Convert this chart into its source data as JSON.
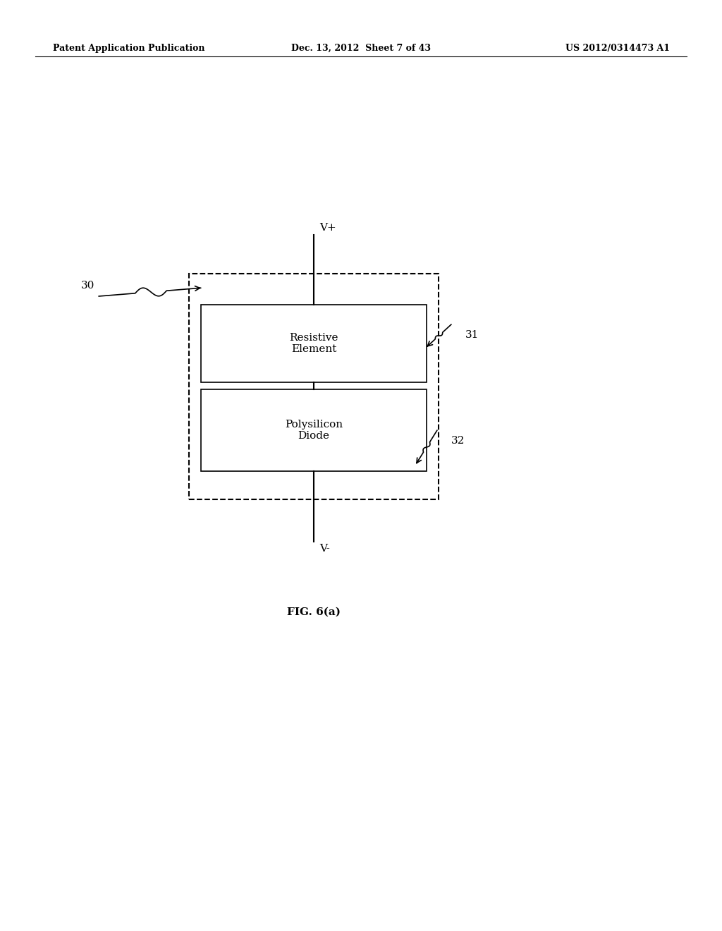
{
  "background_color": "#ffffff",
  "header_left": "Patent Application Publication",
  "header_middle": "Dec. 13, 2012  Sheet 7 of 43",
  "header_right": "US 2012/0314473 A1",
  "fig_label": "FIG. 6(a)",
  "label_30": "30",
  "label_31": "31",
  "label_32": "32",
  "text_re": "Resistive\nElement",
  "text_pd": "Polysilicon\nDiode",
  "vplus_label": "V+",
  "vminus_label": "V-"
}
